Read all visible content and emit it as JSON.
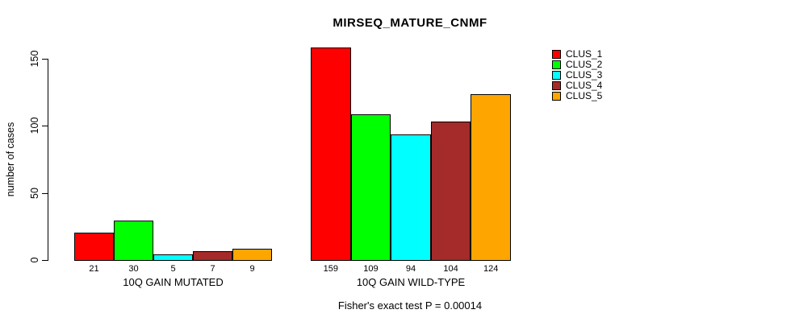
{
  "chart_data": {
    "type": "bar",
    "title": "MIRSEQ_MATURE_CNMF",
    "ylabel": "number of cases",
    "xlabel": "",
    "categories": [
      "10Q GAIN MUTATED",
      "10Q GAIN WILD-TYPE"
    ],
    "series": [
      {
        "name": "CLUS_1",
        "color": "#FF0000",
        "values": [
          21,
          159
        ]
      },
      {
        "name": "CLUS_2",
        "color": "#00FF00",
        "values": [
          30,
          109
        ]
      },
      {
        "name": "CLUS_3",
        "color": "#00FFFF",
        "values": [
          5,
          94
        ]
      },
      {
        "name": "CLUS_4",
        "color": "#A52A2A",
        "values": [
          7,
          104
        ]
      },
      {
        "name": "CLUS_5",
        "color": "#FFA500",
        "values": [
          9,
          124
        ]
      }
    ],
    "yticks": [
      0,
      50,
      100,
      150
    ],
    "ylim": [
      0,
      150
    ],
    "grid": false,
    "legend_position": "top-right-inside",
    "bar_value_labels": true,
    "annotation": "Fisher's exact test P = 0.00014",
    "background_color": "#FFFFFF",
    "axis_color": "#000000"
  }
}
